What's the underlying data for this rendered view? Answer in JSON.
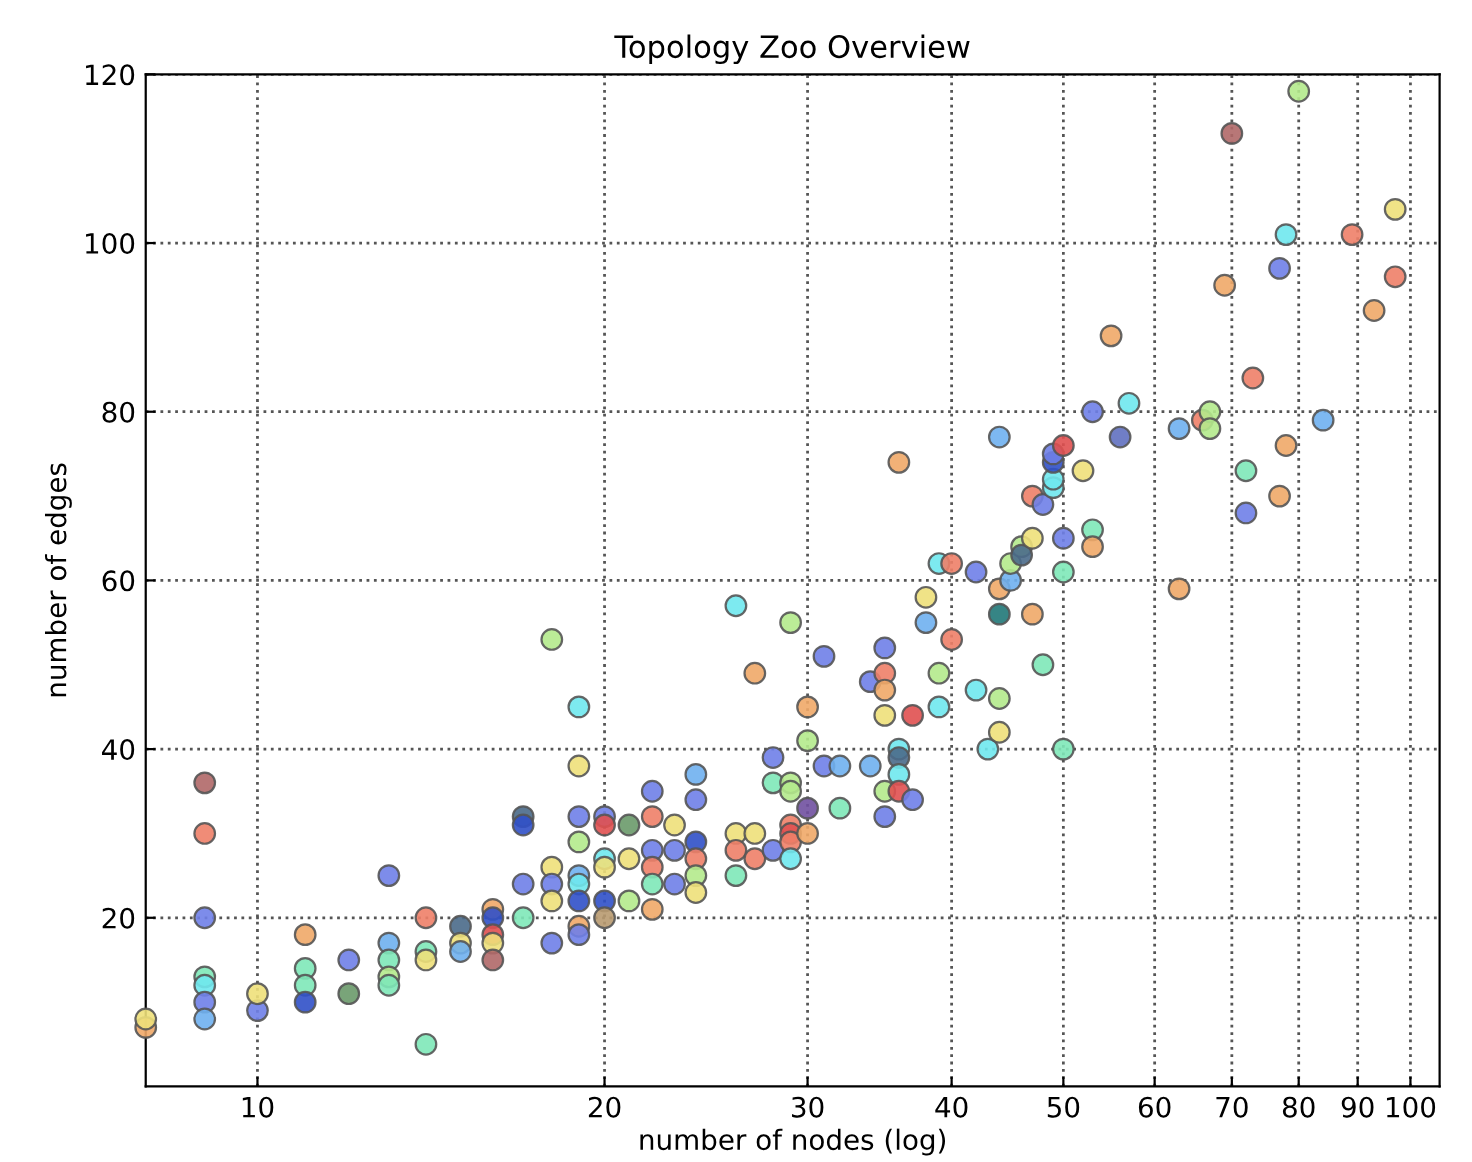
{
  "chart_data": {
    "type": "scatter",
    "title": "Topology Zoo Overview",
    "xlabel": "number of nodes (log)",
    "ylabel": "number of edges",
    "x": [
      8,
      8,
      9,
      9,
      9,
      9,
      9,
      9,
      9,
      10,
      10,
      11,
      11,
      11,
      11,
      12,
      12,
      13,
      13,
      13,
      13,
      13,
      14,
      14,
      14,
      14,
      15,
      15,
      15,
      16,
      16,
      16,
      16,
      16,
      17,
      17,
      17,
      17,
      18,
      18,
      18,
      18,
      18,
      19,
      19,
      19,
      19,
      19,
      19,
      19,
      19,
      19,
      20,
      20,
      20,
      20,
      20,
      20,
      21,
      21,
      21,
      22,
      22,
      22,
      22,
      22,
      22,
      23,
      23,
      23,
      24,
      24,
      24,
      24,
      24,
      24,
      26,
      26,
      26,
      26,
      27,
      27,
      27,
      28,
      28,
      28,
      29,
      29,
      29,
      29,
      29,
      29,
      29,
      30,
      30,
      30,
      30,
      31,
      31,
      32,
      32,
      34,
      34,
      35,
      35,
      35,
      35,
      35,
      35,
      36,
      36,
      36,
      36,
      36,
      37,
      37,
      38,
      38,
      39,
      39,
      39,
      40,
      40,
      42,
      42,
      43,
      44,
      44,
      44,
      44,
      44,
      45,
      45,
      46,
      46,
      47,
      47,
      47,
      48,
      48,
      49,
      49,
      49,
      49,
      50,
      50,
      50,
      50,
      52,
      53,
      53,
      53,
      55,
      56,
      57,
      63,
      63,
      66,
      67,
      67,
      69,
      70,
      72,
      72,
      73,
      77,
      77,
      78,
      78,
      80,
      84,
      89,
      93,
      97,
      97
    ],
    "values": [
      7,
      8,
      36,
      30,
      20,
      13,
      12,
      10,
      8,
      9,
      11,
      18,
      14,
      12,
      10,
      15,
      11,
      25,
      17,
      15,
      13,
      12,
      20,
      16,
      15,
      5,
      19,
      17,
      16,
      21,
      20,
      18,
      17,
      15,
      32,
      31,
      24,
      20,
      53,
      26,
      24,
      22,
      17,
      45,
      38,
      32,
      29,
      25,
      24,
      22,
      19,
      18,
      32,
      31,
      27,
      26,
      22,
      20,
      31,
      27,
      22,
      35,
      32,
      28,
      26,
      24,
      21,
      31,
      28,
      24,
      37,
      34,
      29,
      27,
      25,
      23,
      57,
      30,
      28,
      25,
      30,
      27,
      49,
      39,
      36,
      28,
      55,
      36,
      35,
      31,
      30,
      29,
      27,
      45,
      41,
      33,
      30,
      51,
      38,
      38,
      33,
      38,
      48,
      52,
      49,
      47,
      44,
      35,
      32,
      40,
      39,
      37,
      35,
      74,
      34,
      44,
      58,
      55,
      49,
      45,
      62,
      53,
      62,
      61,
      47,
      40,
      77,
      46,
      42,
      59,
      56,
      60,
      62,
      64,
      63,
      65,
      56,
      70,
      69,
      50,
      71,
      72,
      74,
      75,
      76,
      65,
      61,
      40,
      73,
      66,
      64,
      80,
      89,
      77,
      81,
      78,
      59,
      79,
      80,
      78,
      95,
      113,
      73,
      68,
      84,
      70,
      97,
      76,
      101,
      118,
      79,
      101,
      92,
      104,
      96
    ],
    "colors": [
      "#f0a868",
      "#eee07a",
      "#b06868",
      "#ee8068",
      "#6f7fe8",
      "#7ee8b8",
      "#6fe8ee",
      "#6f7fe8",
      "#6fb0f0",
      "#6f7fe8",
      "#eee07a",
      "#f0a868",
      "#7ee8b8",
      "#7ee8b8",
      "#3050c8",
      "#6f7fe8",
      "#6a9a6a",
      "#6f7fe8",
      "#6fb0f0",
      "#7ee8b8",
      "#b4ea8c",
      "#7ee8b8",
      "#ee8068",
      "#7ee8b8",
      "#eee07a",
      "#7ee8b8",
      "#4a6a8a",
      "#eee07a",
      "#6fb0f0",
      "#f0a868",
      "#3050c8",
      "#e05050",
      "#eee07a",
      "#b06868",
      "#4a6a8a",
      "#3050c8",
      "#6f7fe8",
      "#7ee8b8",
      "#b4ea8c",
      "#eee07a",
      "#6f7fe8",
      "#eee07a",
      "#6f7fe8",
      "#6fe8ee",
      "#eee07a",
      "#6f7fe8",
      "#b4ea8c",
      "#6fb0f0",
      "#6fe8ee",
      "#3050c8",
      "#f0a868",
      "#6f7fe8",
      "#6f7fe8",
      "#e05050",
      "#6fe8ee",
      "#eee07a",
      "#3050c8",
      "#b89a70",
      "#6a9a6a",
      "#eee07a",
      "#b4ea8c",
      "#6f7fe8",
      "#ee8068",
      "#6f7fe8",
      "#ee8068",
      "#7ee8b8",
      "#f0a868",
      "#eee07a",
      "#6f7fe8",
      "#6f7fe8",
      "#6fb0f0",
      "#6f7fe8",
      "#3050c8",
      "#ee8068",
      "#b4ea8c",
      "#eee07a",
      "#6fe8ee",
      "#eee07a",
      "#ee8068",
      "#7ee8b8",
      "#eee07a",
      "#ee8068",
      "#f0a868",
      "#6f7fe8",
      "#7ee8b8",
      "#6f7fe8",
      "#b4ea8c",
      "#b4ea8c",
      "#b4ea8c",
      "#ee8068",
      "#e05050",
      "#ee8068",
      "#6fe8ee",
      "#f0a868",
      "#b4ea8c",
      "#7050a0",
      "#f0a868",
      "#6f7fe8",
      "#6f7fe8",
      "#6fb0f0",
      "#7ee8b8",
      "#6fb0f0",
      "#6f7fe8",
      "#6f7fe8",
      "#ee8068",
      "#f0a868",
      "#eee07a",
      "#b4ea8c",
      "#6f7fe8",
      "#6fe8ee",
      "#4a6a8a",
      "#6fe8ee",
      "#e05050",
      "#f0a868",
      "#6f7fe8",
      "#e05050",
      "#eee07a",
      "#6fb0f0",
      "#b4ea8c",
      "#6fe8ee",
      "#6fe8ee",
      "#ee8068",
      "#ee8068",
      "#6f7fe8",
      "#6fe8ee",
      "#6fe8ee",
      "#6fb0f0",
      "#b4ea8c",
      "#eee07a",
      "#f0a868",
      "#207878",
      "#6fb0f0",
      "#b4ea8c",
      "#b4ea8c",
      "#4a6a8a",
      "#eee07a",
      "#f0a868",
      "#ee8068",
      "#6f7fe8",
      "#7ee8b8",
      "#6fe8ee",
      "#6fe8ee",
      "#3050c8",
      "#6f7fe8",
      "#e05050",
      "#6f7fe8",
      "#7ee8b8",
      "#7ee8b8",
      "#eee07a",
      "#7ee8b8",
      "#f0a868",
      "#6f7fe8",
      "#f0a868",
      "#6070c0",
      "#6fe8ee",
      "#6fb0f0",
      "#f0a868",
      "#ee8068",
      "#b4ea8c",
      "#b4ea8c",
      "#f0a868",
      "#b06868",
      "#7ee8b8",
      "#6f7fe8",
      "#ee8068",
      "#f0a868",
      "#6f7fe8",
      "#f0a868",
      "#6fe8ee",
      "#b4ea8c",
      "#6fb0f0",
      "#ee8068",
      "#f0a868",
      "#eee07a",
      "#ee8068"
    ],
    "log": "x",
    "xlim": [
      8,
      106
    ],
    "xticks": [
      10,
      20,
      30,
      40,
      50,
      60,
      70,
      80,
      90,
      100
    ],
    "ylim": [
      0,
      120
    ],
    "yticks": [
      20,
      40,
      60,
      80,
      100,
      120
    ],
    "grid": true,
    "marker": "circle",
    "legend": false
  }
}
